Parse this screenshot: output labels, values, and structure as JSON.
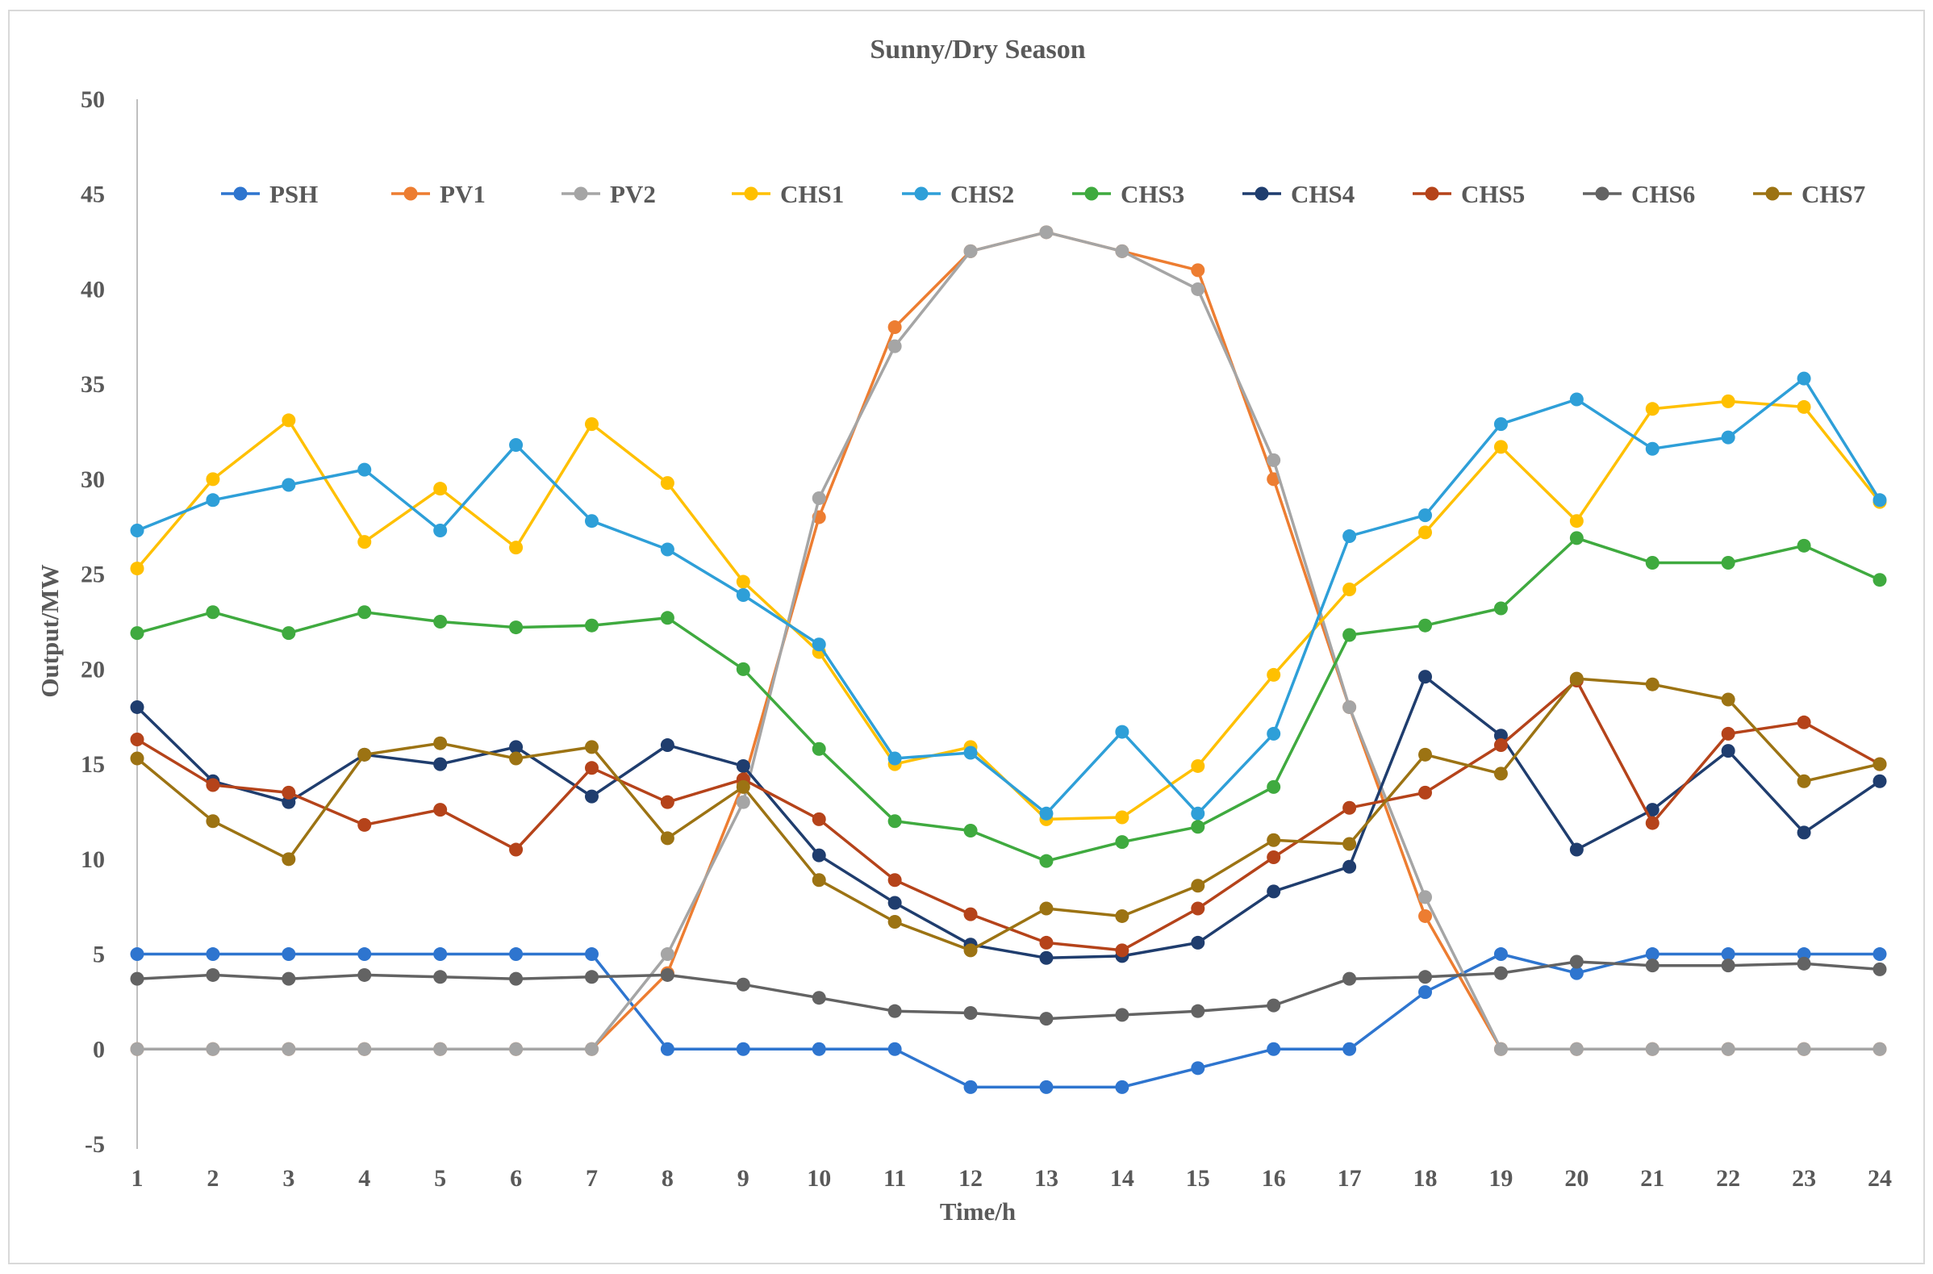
{
  "chart_data": {
    "type": "line",
    "title": "Sunny/Dry Season",
    "xlabel": "Time/h",
    "ylabel": "Output/MW",
    "ylim": [
      -5,
      50
    ],
    "y_ticks": [
      -5,
      0,
      5,
      10,
      15,
      20,
      25,
      30,
      35,
      40,
      45,
      50
    ],
    "x": [
      1,
      2,
      3,
      4,
      5,
      6,
      7,
      8,
      9,
      10,
      11,
      12,
      13,
      14,
      15,
      16,
      17,
      18,
      19,
      20,
      21,
      22,
      23,
      24
    ],
    "grid": false,
    "legend_position": "top",
    "series": [
      {
        "name": "PSH",
        "color": "#2E75CF",
        "values": [
          5,
          5,
          5,
          5,
          5,
          5,
          5,
          0,
          0,
          0,
          0,
          -2,
          -2,
          -2,
          -1,
          0,
          0,
          3,
          5,
          4,
          5,
          5,
          5,
          5
        ]
      },
      {
        "name": "PV1",
        "color": "#ED7D31",
        "values": [
          0,
          0,
          0,
          0,
          0,
          0,
          0,
          4,
          14,
          28,
          38,
          42,
          43,
          42,
          41,
          30,
          18,
          7,
          0,
          0,
          0,
          0,
          0,
          0
        ]
      },
      {
        "name": "PV2",
        "color": "#A5A5A5",
        "values": [
          0,
          0,
          0,
          0,
          0,
          0,
          0,
          5,
          13,
          29,
          37,
          42,
          43,
          42,
          40,
          31,
          18,
          8,
          0,
          0,
          0,
          0,
          0,
          0
        ]
      },
      {
        "name": "CHS1",
        "color": "#FFC000",
        "values": [
          25.3,
          30,
          33.1,
          26.7,
          29.5,
          26.4,
          32.9,
          29.8,
          24.6,
          20.9,
          15,
          15.9,
          12.1,
          12.2,
          14.9,
          19.7,
          24.2,
          27.2,
          31.7,
          27.8,
          33.7,
          34.1,
          33.8,
          28.8
        ]
      },
      {
        "name": "CHS2",
        "color": "#2E9FD8",
        "values": [
          27.3,
          28.9,
          29.7,
          30.5,
          27.3,
          31.8,
          27.8,
          26.3,
          23.9,
          21.3,
          15.3,
          15.6,
          12.4,
          16.7,
          12.4,
          16.6,
          27,
          28.1,
          32.9,
          34.2,
          31.6,
          32.2,
          35.3,
          28.9
        ]
      },
      {
        "name": "CHS3",
        "color": "#3FAA3F",
        "values": [
          21.9,
          23,
          21.9,
          23,
          22.5,
          22.2,
          22.3,
          22.7,
          20,
          15.8,
          12,
          11.5,
          9.9,
          10.9,
          11.7,
          13.8,
          21.8,
          22.3,
          23.2,
          26.9,
          25.6,
          25.6,
          26.5,
          24.7
        ]
      },
      {
        "name": "CHS4",
        "color": "#1F3D6E",
        "values": [
          18,
          14.1,
          13,
          15.5,
          15,
          15.9,
          13.3,
          16,
          14.9,
          10.2,
          7.7,
          5.5,
          4.8,
          4.9,
          5.6,
          8.3,
          9.6,
          19.6,
          16.5,
          10.5,
          12.6,
          15.7,
          11.4,
          14.1
        ]
      },
      {
        "name": "CHS5",
        "color": "#B5431A",
        "values": [
          16.3,
          13.9,
          13.5,
          11.8,
          12.6,
          10.5,
          14.8,
          13,
          14.2,
          12.1,
          8.9,
          7.1,
          5.6,
          5.2,
          7.4,
          10.1,
          12.7,
          13.5,
          16,
          19.4,
          11.9,
          16.6,
          17.2,
          15
        ]
      },
      {
        "name": "CHS6",
        "color": "#636363",
        "values": [
          3.7,
          3.9,
          3.7,
          3.9,
          3.8,
          3.7,
          3.8,
          3.9,
          3.4,
          2.7,
          2,
          1.9,
          1.6,
          1.8,
          2,
          2.3,
          3.7,
          3.8,
          4,
          4.6,
          4.4,
          4.4,
          4.5,
          4.2
        ]
      },
      {
        "name": "CHS7",
        "color": "#9C7313",
        "values": [
          15.3,
          12,
          10,
          15.5,
          16.1,
          15.3,
          15.9,
          11.1,
          13.8,
          8.9,
          6.7,
          5.2,
          7.4,
          7,
          8.6,
          11,
          10.8,
          15.5,
          14.5,
          19.5,
          19.2,
          18.4,
          14.1,
          15
        ]
      }
    ]
  }
}
